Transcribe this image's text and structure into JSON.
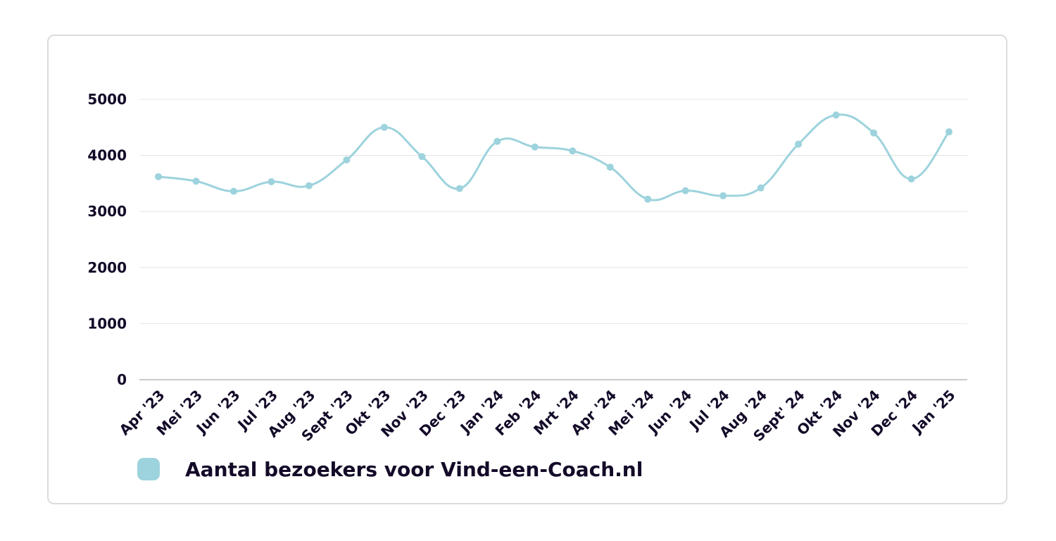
{
  "chart_data": {
    "type": "line",
    "categories": [
      "Apr '23",
      "Mei '23",
      "Jun '23",
      "Jul '23",
      "Aug '23",
      "Sept '23",
      "Okt '23",
      "Nov '23",
      "Dec '23",
      "Jan '24",
      "Feb '24",
      "Mrt '24",
      "Apr '24",
      "Mei '24",
      "Jun '24",
      "Jul '24",
      "Aug '24",
      "Sept' 24",
      "Okt '24",
      "Nov '24",
      "Dec '24",
      "Jan '25"
    ],
    "series": [
      {
        "name": "Aantal bezoekers voor Vind-een-Coach.nl",
        "values": [
          3620,
          3540,
          3360,
          3530,
          3460,
          3920,
          4500,
          3980,
          3410,
          4250,
          4150,
          4080,
          3790,
          3220,
          3370,
          3280,
          3420,
          4200,
          4720,
          4400,
          3580,
          4420
        ]
      }
    ],
    "y_ticks": [
      "0",
      "1000",
      "2000",
      "3000",
      "4000",
      "5000"
    ],
    "ylim": [
      0,
      5000
    ],
    "grid": true,
    "legend": "bottom-left",
    "colors": {
      "line": "#9dd3dd",
      "grid": "#e3e3e3",
      "axis": "#b9b9b9",
      "text": "#140a28"
    }
  }
}
